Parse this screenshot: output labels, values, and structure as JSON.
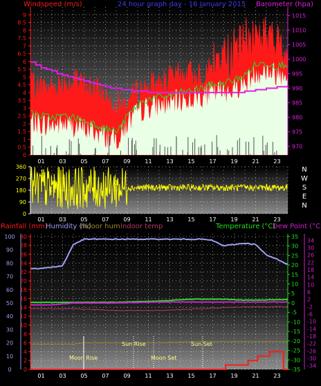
{
  "colors": {
    "wind": "#ff1a1a",
    "gust_fill": "#e9ffe6",
    "gust_line": "#22dd22",
    "baro": "#e020e0",
    "winddir": "#ffff00",
    "rain": "#ff1a1a",
    "humidity": "#9f9ff2",
    "indoor_hum": "#99882a",
    "indoor_temp": "#b23a6a",
    "temperature": "#22e022",
    "dewpoint": "#d020d0"
  },
  "header": {
    "windspeed": "Windspeed (m/s)",
    "title": "24 hour graph day - 16 January 2015",
    "barometer": "Barometer (hpa)"
  },
  "lower_header": {
    "rainfall": "Rainfall (mm)",
    "humidity": "Humidity (%)",
    "indoor_hum": "Indoor hum",
    "indoor_temp": "Indoor temp",
    "temperature": "Temperature (°C)",
    "dewpoint": "Dew Point (°C)"
  },
  "compass": [
    "N",
    "W",
    "S",
    "E",
    "N"
  ],
  "annotations": {
    "sun_rise": "Sun Rise",
    "sun_set": "Sun Set",
    "moon_rise": "Moon Rise",
    "moon_set": "Moon Set"
  },
  "chart_data": [
    {
      "type": "line",
      "title": "24 hour graph day - 16 January 2015",
      "x_ticks": [
        "01",
        "03",
        "05",
        "07",
        "09",
        "11",
        "13",
        "15",
        "17",
        "19",
        "21",
        "23"
      ],
      "xlim": [
        0,
        24
      ],
      "grid": true,
      "left_axis": {
        "label": "Windspeed (m/s)",
        "ylim": [
          0,
          9.5
        ],
        "ticks": [
          "0",
          "0.5",
          "1",
          "1.5",
          "2",
          "2.5",
          "3",
          "3.5",
          "4",
          "4.5",
          "5",
          "5.5",
          "6",
          "6.5",
          "7",
          "7.5",
          "8",
          "8.5",
          "9"
        ]
      },
      "right_axis": {
        "label": "Barometer (hpa)",
        "ylim": [
          967,
          1018
        ],
        "ticks": [
          "970",
          "975",
          "980",
          "985",
          "990",
          "995",
          "1000",
          "1005",
          "1010",
          "1015"
        ]
      },
      "series": [
        {
          "name": "Windspeed (m/s)",
          "axis": "left",
          "x": [
            0,
            1,
            2,
            3,
            4,
            5,
            6,
            7,
            8,
            8.5,
            9,
            10,
            11,
            12,
            13,
            14,
            15,
            16,
            17,
            18,
            19,
            20,
            21,
            22,
            23,
            24
          ],
          "values": [
            4.2,
            4.0,
            4.1,
            4.3,
            4.4,
            4.2,
            3.9,
            3.5,
            3.2,
            2.8,
            3.1,
            3.8,
            4.2,
            4.3,
            4.6,
            4.8,
            4.9,
            5.0,
            5.3,
            5.8,
            6.2,
            6.8,
            7.3,
            7.1,
            6.6,
            6.4
          ]
        },
        {
          "name": "Gust",
          "axis": "left",
          "x": [
            0,
            1,
            2,
            3,
            4,
            5,
            6,
            7,
            8,
            8.5,
            9,
            10,
            11,
            12,
            13,
            14,
            15,
            16,
            17,
            18,
            19,
            20,
            21,
            22,
            23,
            24
          ],
          "values": [
            2.2,
            2.0,
            1.9,
            2.0,
            1.9,
            1.7,
            1.5,
            1.2,
            1.0,
            1.3,
            2.0,
            2.7,
            3.1,
            3.2,
            3.3,
            3.5,
            3.6,
            3.8,
            4.0,
            4.1,
            4.3,
            4.6,
            5.3,
            5.4,
            5.2,
            5.4
          ]
        },
        {
          "name": "Barometer (hpa)",
          "axis": "right",
          "x": [
            0,
            0.5,
            1,
            1.5,
            2,
            2.5,
            3,
            3.5,
            4,
            4.5,
            5,
            5.5,
            6,
            6.5,
            7,
            7.5,
            8,
            8.5,
            9,
            9.5,
            10,
            11,
            12,
            13,
            14,
            15,
            16,
            17,
            18,
            19,
            20,
            21,
            22,
            23,
            24
          ],
          "values": [
            999,
            998,
            997,
            996.5,
            996,
            995,
            994.5,
            994,
            993.5,
            993,
            992.5,
            992,
            991.5,
            991,
            990.5,
            990,
            990,
            989.5,
            989.5,
            989,
            989,
            988.5,
            988.5,
            988.5,
            988.5,
            988.5,
            988.5,
            988.5,
            988.5,
            988.5,
            989,
            989.5,
            990,
            990.5,
            991
          ]
        }
      ]
    },
    {
      "type": "scatter",
      "title": "Wind direction",
      "x_ticks": [
        "01",
        "03",
        "05",
        "07",
        "09",
        "11",
        "13",
        "15",
        "17",
        "19",
        "21",
        "23"
      ],
      "xlim": [
        0,
        24
      ],
      "ylim": [
        0,
        360
      ],
      "y_ticks": [
        "0",
        "90",
        "180",
        "270",
        "360"
      ],
      "series": [
        {
          "name": "Wind direction",
          "x": [
            0,
            2,
            4,
            6,
            8,
            9,
            12,
            16,
            20,
            24
          ],
          "values": [
            210,
            195,
            200,
            220,
            210,
            200,
            195,
            200,
            195,
            200
          ]
        }
      ]
    },
    {
      "type": "line",
      "x_ticks": [
        "01",
        "03",
        "05",
        "07",
        "09",
        "11",
        "13",
        "15",
        "17",
        "19",
        "21",
        "23"
      ],
      "xlim": [
        0,
        24
      ],
      "grid": true,
      "left_axes": [
        {
          "label": "Rainfall (mm)",
          "ylim": [
            0,
            30
          ],
          "ticks": [
            "0",
            "2",
            "4",
            "6",
            "8",
            "10",
            "12",
            "14",
            "16",
            "18",
            "20",
            "22",
            "24",
            "26",
            "28",
            "30"
          ]
        },
        {
          "label": "Humidity (%)",
          "ylim": [
            0,
            100
          ],
          "ticks": [
            "0",
            "10",
            "20",
            "30",
            "40",
            "50",
            "60",
            "70",
            "80",
            "90",
            "100"
          ]
        }
      ],
      "right_axes": [
        {
          "label": "Temperature (°C)",
          "ylim": [
            -35,
            35
          ],
          "ticks": [
            "-35",
            "-30",
            "-25",
            "-20",
            "-15",
            "-10",
            "-5",
            "0",
            "5",
            "10",
            "15",
            "20",
            "25",
            "30",
            "35"
          ]
        },
        {
          "label": "Dew Point (°C)",
          "ylim": [
            -36,
            36
          ],
          "ticks": [
            "-36",
            "-34",
            "-32",
            "-30",
            "-28",
            "-26",
            "-24",
            "-22",
            "-20",
            "-18",
            "-16",
            "-14",
            "-12",
            "-10",
            "-8",
            "-6",
            "-4",
            "-2",
            "0",
            "2",
            "4",
            "6",
            "8",
            "10",
            "12",
            "14",
            "16",
            "18",
            "20",
            "22",
            "24",
            "26",
            "28",
            "30",
            "32",
            "34",
            "36"
          ]
        }
      ],
      "series": [
        {
          "name": "Humidity (%)",
          "x": [
            0,
            1,
            2,
            3,
            3.5,
            4,
            5,
            8,
            12,
            16,
            17,
            18,
            19,
            20,
            21,
            22,
            23,
            24
          ],
          "values": [
            76,
            76,
            77,
            78,
            86,
            94,
            98,
            98,
            98,
            98,
            97,
            93,
            94,
            95,
            94,
            86,
            83,
            79
          ]
        },
        {
          "name": "Indoor hum",
          "x": [
            0,
            3,
            4,
            5,
            8,
            12,
            16,
            20,
            24
          ],
          "values": [
            19,
            19,
            19,
            20,
            20,
            20,
            21,
            21,
            21
          ]
        },
        {
          "name": "Indoor temp",
          "x": [
            0,
            4,
            8,
            12,
            16,
            20,
            24
          ],
          "values": [
            -3,
            -3,
            -4,
            -4,
            -3,
            -2,
            -2
          ]
        },
        {
          "name": "Temperature (°C)",
          "x": [
            0,
            4,
            8,
            12,
            15,
            18,
            20,
            24
          ],
          "values": [
            0.3,
            0.3,
            0.4,
            1,
            2,
            2,
            1.5,
            1.8
          ]
        },
        {
          "name": "Dew Point (°C)",
          "x": [
            0,
            2,
            4,
            6,
            8,
            12,
            16,
            20,
            24
          ],
          "values": [
            -1,
            -1,
            0,
            0,
            0,
            0.5,
            0.5,
            0.5,
            0.5
          ]
        },
        {
          "name": "Rainfall (mm)",
          "x": [
            0,
            18,
            18.2,
            20,
            20.3,
            21,
            21.2,
            22,
            22.3,
            23,
            23.5,
            23.6,
            24
          ],
          "values": [
            0,
            0,
            1,
            1,
            2,
            2,
            3,
            3,
            4,
            4,
            4,
            0,
            0
          ]
        }
      ]
    }
  ]
}
